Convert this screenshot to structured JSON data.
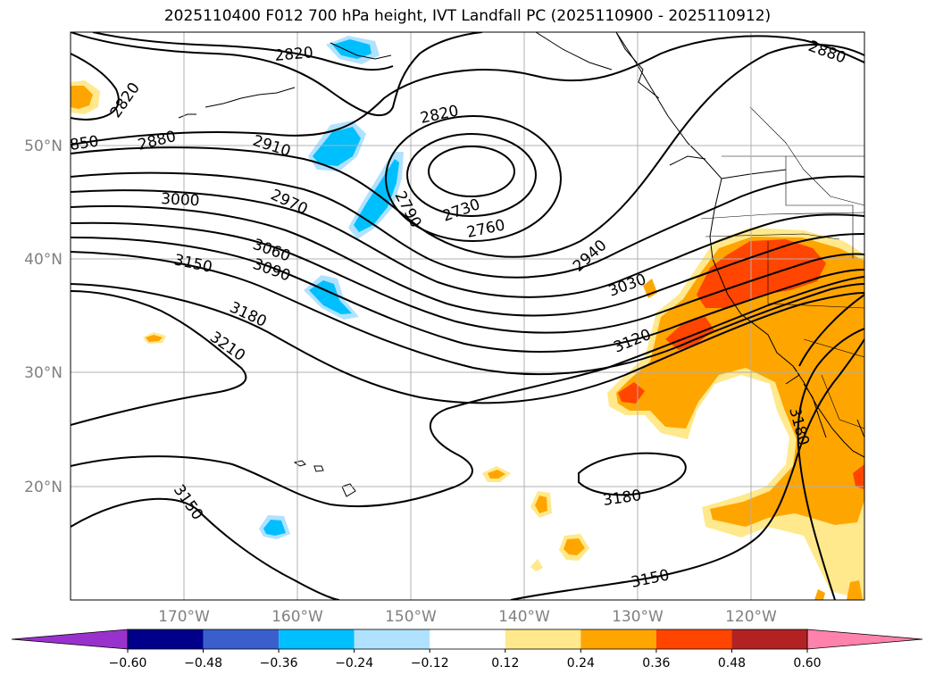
{
  "title": "2025110400 F012 700 hPa height, IVT Landfall PC (2025110900 - 2025110912)",
  "map": {
    "lon_range": [
      -180,
      -110
    ],
    "lat_range": [
      10,
      60
    ],
    "lat_labels": [
      "50°N",
      "40°N",
      "30°N",
      "20°N"
    ],
    "lon_labels": [
      "170°W",
      "160°W",
      "150°W",
      "140°W",
      "130°W",
      "120°W"
    ],
    "contour_labels": [
      "2820",
      "2820",
      "2820",
      "2880",
      "2880",
      "850",
      "2910",
      "3000",
      "2970",
      "2790",
      "2730",
      "2760",
      "2940",
      "3060",
      "3090",
      "3150",
      "3030",
      "3180",
      "3120",
      "3210",
      "3180",
      "3180",
      "3150",
      "3150"
    ]
  },
  "colorbar": {
    "ticks": [
      "−0.60",
      "−0.48",
      "−0.36",
      "−0.24",
      "−0.12",
      "0.12",
      "0.24",
      "0.36",
      "0.48",
      "0.60"
    ],
    "colors": [
      "#9932cc",
      "#00008b",
      "#3a5fcd",
      "#00bfff",
      "#b0e2ff",
      "#ffffff",
      "#ffe98c",
      "#ffa500",
      "#ff4500",
      "#b22222",
      "#ff82ab"
    ]
  }
}
